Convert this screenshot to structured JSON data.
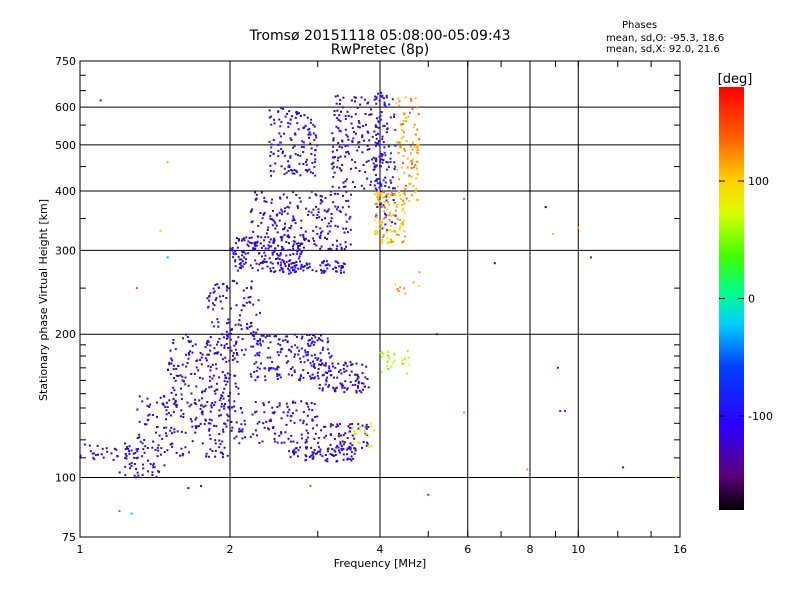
{
  "chart_data": {
    "type": "scatter",
    "title": "Tromsø 20151118 05:08:00-05:09:43",
    "subtitle": "RwPretec (8p)",
    "xlabel": "Frequency [MHz]",
    "ylabel": "Stationary phase Virtual Height [km]",
    "x_scale": "log",
    "y_scale": "log",
    "xlim": [
      1,
      16
    ],
    "ylim": [
      75,
      750
    ],
    "x_ticks": [
      1,
      2,
      4,
      6,
      8,
      10,
      16
    ],
    "x_tick_labels": [
      "1",
      "2",
      "4",
      "6",
      "8",
      "10",
      "16"
    ],
    "y_ticks": [
      75,
      100,
      200,
      300,
      400,
      500,
      600,
      750
    ],
    "y_tick_labels": [
      "75",
      "100",
      "200",
      "300",
      "400",
      "500",
      "600",
      "750"
    ],
    "grid": true,
    "colorbar": {
      "label": "[deg]",
      "range": [
        -180,
        180
      ],
      "ticks": [
        100,
        0,
        -100
      ],
      "tick_labels": [
        "100",
        "0",
        "-100"
      ],
      "colormap": "rainbow"
    },
    "stats": {
      "heading": "Phases",
      "O_label": "mean, sd,O:",
      "O_values": "-95.3, 18.6",
      "X_label": "mean, sd,X:",
      "X_values": "92.0, 21.6"
    },
    "clusters": [
      {
        "f": [
          1.0,
          1.3
        ],
        "h": [
          108,
          118
        ],
        "phase": -110,
        "n": 40
      },
      {
        "f": [
          1.2,
          1.5
        ],
        "h": [
          100,
          110
        ],
        "phase": -105,
        "n": 30
      },
      {
        "f": [
          1.3,
          2.0
        ],
        "h": [
          110,
          150
        ],
        "phase": -110,
        "n": 180
      },
      {
        "f": [
          1.5,
          2.1
        ],
        "h": [
          140,
          200
        ],
        "phase": -115,
        "n": 160
      },
      {
        "f": [
          1.8,
          2.3
        ],
        "h": [
          180,
          260
        ],
        "phase": -110,
        "n": 110
      },
      {
        "f": [
          2.0,
          3.0
        ],
        "h": [
          118,
          145
        ],
        "phase": -108,
        "n": 120
      },
      {
        "f": [
          2.2,
          3.2
        ],
        "h": [
          160,
          200
        ],
        "phase": -100,
        "n": 180
      },
      {
        "f": [
          2.6,
          3.6
        ],
        "h": [
          108,
          116
        ],
        "phase": -110,
        "n": 80
      },
      {
        "f": [
          3.0,
          3.8
        ],
        "h": [
          115,
          130
        ],
        "phase": -125,
        "n": 60
      },
      {
        "f": [
          3.0,
          3.8
        ],
        "h": [
          150,
          175
        ],
        "phase": -120,
        "n": 90
      },
      {
        "f": [
          2.0,
          2.8
        ],
        "h": [
          270,
          320
        ],
        "phase": -108,
        "n": 160
      },
      {
        "f": [
          2.2,
          3.5
        ],
        "h": [
          300,
          400
        ],
        "phase": -112,
        "n": 220
      },
      {
        "f": [
          2.4,
          3.0
        ],
        "h": [
          430,
          600
        ],
        "phase": -100,
        "n": 130
      },
      {
        "f": [
          3.2,
          4.1
        ],
        "h": [
          400,
          640
        ],
        "phase": -120,
        "n": 170
      },
      {
        "f": [
          2.6,
          3.4
        ],
        "h": [
          268,
          285
        ],
        "phase": -95,
        "n": 70
      },
      {
        "f": [
          3.9,
          4.3
        ],
        "h": [
          330,
          650
        ],
        "phase": -90,
        "n": 110
      },
      {
        "f": [
          3.9,
          4.5
        ],
        "h": [
          310,
          400
        ],
        "phase": 105,
        "n": 110
      },
      {
        "f": [
          4.3,
          4.8
        ],
        "h": [
          380,
          640
        ],
        "phase": 120,
        "n": 90
      },
      {
        "f": [
          4.0,
          4.6
        ],
        "h": [
          165,
          185
        ],
        "phase": 55,
        "n": 25
      },
      {
        "f": [
          3.5,
          3.9
        ],
        "h": [
          115,
          130
        ],
        "phase": 80,
        "n": 20
      },
      {
        "f": [
          4.1,
          4.8
        ],
        "h": [
          240,
          260
        ],
        "phase": 110,
        "n": 8
      }
    ],
    "scattered_points": [
      {
        "f": 1.1,
        "h": 620,
        "phase": -100
      },
      {
        "f": 1.5,
        "h": 460,
        "phase": 110
      },
      {
        "f": 1.5,
        "h": 290,
        "phase": -30
      },
      {
        "f": 1.45,
        "h": 330,
        "phase": 105
      },
      {
        "f": 1.3,
        "h": 250,
        "phase": 150
      },
      {
        "f": 1.2,
        "h": 85,
        "phase": 150
      },
      {
        "f": 1.27,
        "h": 84,
        "phase": -20
      },
      {
        "f": 1.65,
        "h": 95,
        "phase": -110
      },
      {
        "f": 1.75,
        "h": 96,
        "phase": -110
      },
      {
        "f": 2.9,
        "h": 96,
        "phase": 150
      },
      {
        "f": 5.0,
        "h": 92,
        "phase": 170
      },
      {
        "f": 5.2,
        "h": 200,
        "phase": -130
      },
      {
        "f": 5.9,
        "h": 385,
        "phase": 140
      },
      {
        "f": 6.8,
        "h": 282,
        "phase": -150
      },
      {
        "f": 8.6,
        "h": 370,
        "phase": -170
      },
      {
        "f": 8.9,
        "h": 325,
        "phase": 105
      },
      {
        "f": 10.0,
        "h": 335,
        "phase": 115
      },
      {
        "f": 10.6,
        "h": 290,
        "phase": -100
      },
      {
        "f": 9.1,
        "h": 170,
        "phase": -80
      },
      {
        "f": 9.2,
        "h": 138,
        "phase": -70
      },
      {
        "f": 9.4,
        "h": 138,
        "phase": -75
      },
      {
        "f": 5.9,
        "h": 137,
        "phase": -20
      },
      {
        "f": 7.9,
        "h": 104,
        "phase": 120
      },
      {
        "f": 12.3,
        "h": 105,
        "phase": -120
      },
      {
        "f": 15.7,
        "h": 100,
        "phase": 100
      },
      {
        "f": 4.8,
        "h": 270,
        "phase": 115
      }
    ]
  }
}
